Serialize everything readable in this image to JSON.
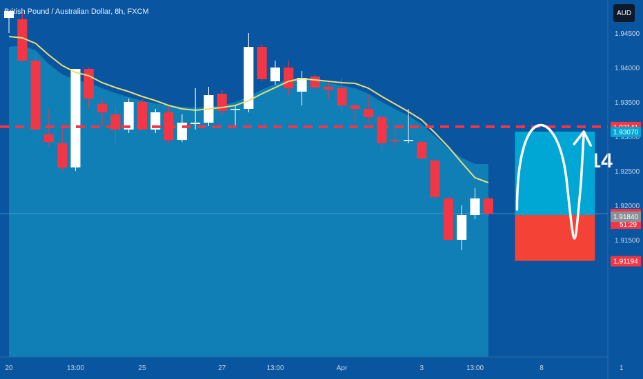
{
  "header": {
    "title": "British Pound / Australian Dollar, 8h, FXCM",
    "currency_button": "AUD"
  },
  "colors": {
    "background": "#0a55a0",
    "band_fill": "#1084b8",
    "bull_candle": "#ffffff",
    "bear_candle": "#f23645",
    "ma_line": "#e5e07a",
    "target_line": "#f23645",
    "target_box": "#00a6d4",
    "stop_box": "#f44336"
  },
  "chart_data": {
    "type": "candlestick",
    "symbol": "British Pound / Australian Dollar",
    "timeframe": "8h",
    "source": "FXCM",
    "y_axis": {
      "ticks": [
        1.915,
        1.92,
        1.925,
        1.93,
        1.935,
        1.94,
        1.945
      ],
      "tick_labels": [
        "1.91500",
        "1.92000",
        "1.92500",
        "1.93000",
        "1.93500",
        "1.94000",
        "1.94500"
      ],
      "range": [
        1.909,
        1.9498
      ]
    },
    "x_axis": {
      "labels": [
        {
          "label": "20",
          "index": 0
        },
        {
          "label": "13:00",
          "index": 5
        },
        {
          "label": "25",
          "index": 10
        },
        {
          "label": "27",
          "index": 16
        },
        {
          "label": "13:00",
          "index": 20
        },
        {
          "label": "Apr",
          "index": 25
        },
        {
          "label": "3",
          "index": 31
        },
        {
          "label": "13:00",
          "index": 35
        },
        {
          "label": "8",
          "index": 40
        },
        {
          "label": "1",
          "index": 46
        }
      ],
      "total_slots": 47
    },
    "candles": [
      {
        "o": 1.9472,
        "h": 1.9482,
        "l": 1.945,
        "c": 1.9482
      },
      {
        "o": 1.947,
        "h": 1.9478,
        "l": 1.941,
        "c": 1.941
      },
      {
        "o": 1.941,
        "h": 1.942,
        "l": 1.931,
        "c": 1.931
      },
      {
        "o": 1.9303,
        "h": 1.934,
        "l": 1.9285,
        "c": 1.9292
      },
      {
        "o": 1.929,
        "h": 1.9318,
        "l": 1.925,
        "c": 1.9255
      },
      {
        "o": 1.9255,
        "h": 1.9398,
        "l": 1.925,
        "c": 1.9398
      },
      {
        "o": 1.9398,
        "h": 1.94,
        "l": 1.934,
        "c": 1.9355
      },
      {
        "o": 1.9347,
        "h": 1.9355,
        "l": 1.9315,
        "c": 1.9335
      },
      {
        "o": 1.9332,
        "h": 1.9345,
        "l": 1.929,
        "c": 1.931
      },
      {
        "o": 1.931,
        "h": 1.9355,
        "l": 1.9305,
        "c": 1.935
      },
      {
        "o": 1.935,
        "h": 1.9355,
        "l": 1.931,
        "c": 1.931
      },
      {
        "o": 1.931,
        "h": 1.934,
        "l": 1.9305,
        "c": 1.9335
      },
      {
        "o": 1.9335,
        "h": 1.9345,
        "l": 1.929,
        "c": 1.9295
      },
      {
        "o": 1.9295,
        "h": 1.9332,
        "l": 1.9292,
        "c": 1.932
      },
      {
        "o": 1.9318,
        "h": 1.937,
        "l": 1.931,
        "c": 1.932
      },
      {
        "o": 1.932,
        "h": 1.9372,
        "l": 1.9315,
        "c": 1.936
      },
      {
        "o": 1.9362,
        "h": 1.9368,
        "l": 1.933,
        "c": 1.9337
      },
      {
        "o": 1.934,
        "h": 1.9345,
        "l": 1.9312,
        "c": 1.934
      },
      {
        "o": 1.934,
        "h": 1.945,
        "l": 1.9335,
        "c": 1.943
      },
      {
        "o": 1.943,
        "h": 1.9434,
        "l": 1.938,
        "c": 1.9383
      },
      {
        "o": 1.938,
        "h": 1.941,
        "l": 1.9375,
        "c": 1.94
      },
      {
        "o": 1.94,
        "h": 1.941,
        "l": 1.936,
        "c": 1.937
      },
      {
        "o": 1.9365,
        "h": 1.9395,
        "l": 1.9345,
        "c": 1.9385
      },
      {
        "o": 1.9387,
        "h": 1.939,
        "l": 1.9368,
        "c": 1.9371
      },
      {
        "o": 1.9372,
        "h": 1.938,
        "l": 1.9355,
        "c": 1.9368
      },
      {
        "o": 1.937,
        "h": 1.9385,
        "l": 1.9335,
        "c": 1.9345
      },
      {
        "o": 1.9345,
        "h": 1.935,
        "l": 1.9318,
        "c": 1.934
      },
      {
        "o": 1.934,
        "h": 1.936,
        "l": 1.932,
        "c": 1.9328
      },
      {
        "o": 1.9328,
        "h": 1.933,
        "l": 1.928,
        "c": 1.929
      },
      {
        "o": 1.9295,
        "h": 1.9318,
        "l": 1.9285,
        "c": 1.9293
      },
      {
        "o": 1.9295,
        "h": 1.934,
        "l": 1.929,
        "c": 1.9295
      },
      {
        "o": 1.9292,
        "h": 1.9295,
        "l": 1.9265,
        "c": 1.9268
      },
      {
        "o": 1.9265,
        "h": 1.9267,
        "l": 1.921,
        "c": 1.9212
      },
      {
        "o": 1.921,
        "h": 1.9212,
        "l": 1.915,
        "c": 1.915
      },
      {
        "o": 1.915,
        "h": 1.92,
        "l": 1.9135,
        "c": 1.9186
      },
      {
        "o": 1.9186,
        "h": 1.9225,
        "l": 1.918,
        "c": 1.921
      },
      {
        "o": 1.921,
        "h": 1.9212,
        "l": 1.9185,
        "c": 1.9188
      }
    ],
    "moving_average": {
      "name": "",
      "values": [
        1.9445,
        1.9443,
        1.9435,
        1.9418,
        1.9403,
        1.9393,
        1.9388,
        1.9378,
        1.9371,
        1.9365,
        1.9358,
        1.9352,
        1.9345,
        1.934,
        1.9338,
        1.934,
        1.9342,
        1.9345,
        1.9352,
        1.9362,
        1.9371,
        1.938,
        1.9384,
        1.9382,
        1.938,
        1.9378,
        1.9377,
        1.937,
        1.9358,
        1.9347,
        1.9336,
        1.9324,
        1.9305,
        1.9285,
        1.9262,
        1.924,
        1.9233
      ],
      "band_top": [
        1.943,
        1.9432,
        1.9425,
        1.9405,
        1.939,
        1.9382,
        1.9378,
        1.937,
        1.9363,
        1.9357,
        1.9352,
        1.9348,
        1.9345,
        1.9343,
        1.9342,
        1.9343,
        1.9345,
        1.935,
        1.9358,
        1.9368,
        1.9376,
        1.9383,
        1.9385,
        1.9382,
        1.9378,
        1.9374,
        1.937,
        1.9362,
        1.935,
        1.934,
        1.933,
        1.9318,
        1.93,
        1.9283,
        1.9269,
        1.926,
        1.926
      ]
    },
    "lines": {
      "target": 1.93141,
      "current": 1.91879
    },
    "target_label": "1.9314",
    "price_badges": [
      {
        "label": "1.93141",
        "value": 1.93141,
        "kind": "target"
      },
      {
        "label": "1.93070",
        "value": 1.9307,
        "kind": "info"
      },
      {
        "label": "1.91879",
        "value": 1.91879,
        "kind": "current",
        "countdown": "51:29"
      },
      {
        "label": "1.91840",
        "value": 1.9184,
        "kind": "neutral"
      },
      {
        "label": "1.91194",
        "value": 1.91194,
        "kind": "stop"
      }
    ],
    "position": {
      "entry": 1.9186,
      "target": 1.9307,
      "stop": 1.91194,
      "start_index": 38,
      "end_index": 44
    }
  }
}
